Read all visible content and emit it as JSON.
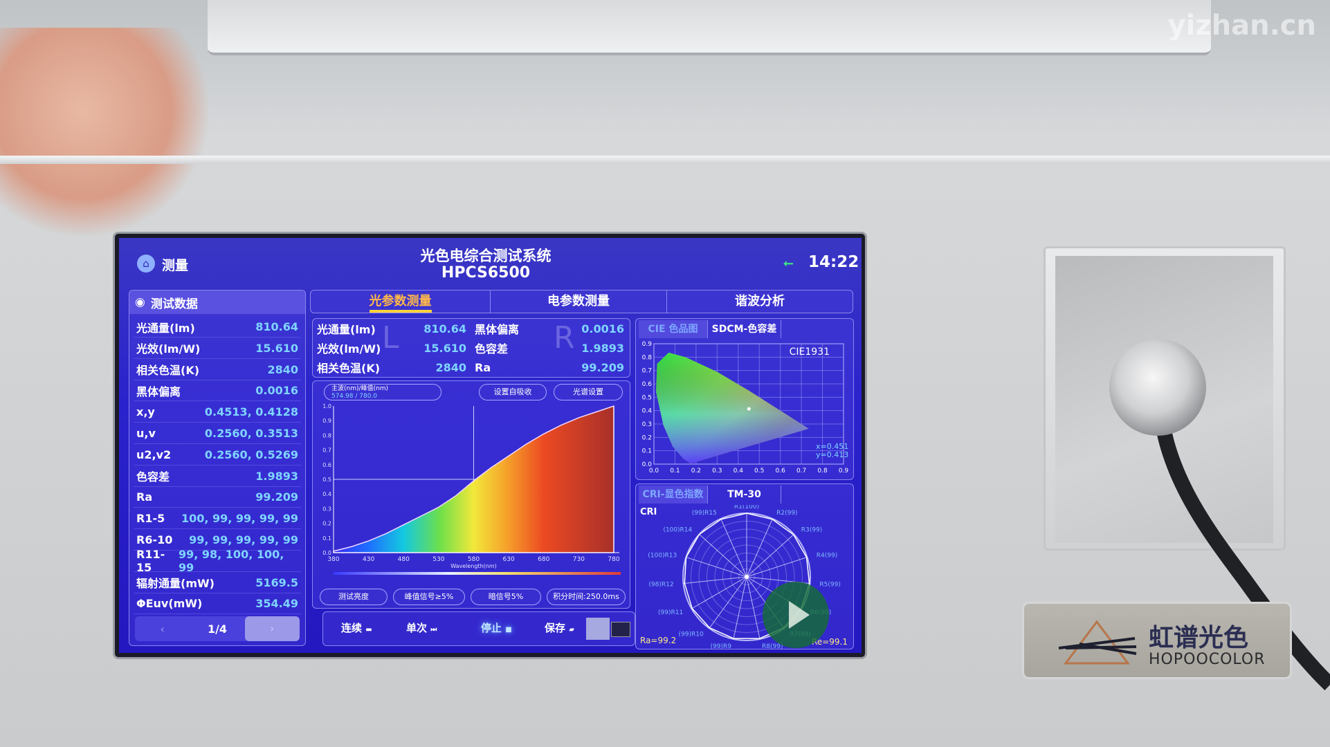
{
  "watermark": "yizhan.cn",
  "header": {
    "nav_label": "测量",
    "title": "光色电综合测试系统",
    "model": "HPCS6500",
    "time": "14:22"
  },
  "left_panel": {
    "title": "测试数据",
    "rows": [
      {
        "label": "光通量(lm)",
        "value": "810.64"
      },
      {
        "label": "光效(lm/W)",
        "value": "15.610"
      },
      {
        "label": "相关色温(K)",
        "value": "2840"
      },
      {
        "label": "黑体偏离",
        "value": "0.0016"
      },
      {
        "label": "x,y",
        "value": "0.4513, 0.4128"
      },
      {
        "label": "u,v",
        "value": "0.2560, 0.3513"
      },
      {
        "label": "u2,v2",
        "value": "0.2560, 0.5269"
      },
      {
        "label": "色容差",
        "value": "1.9893"
      },
      {
        "label": "Ra",
        "value": "99.209"
      },
      {
        "label": "R1-5",
        "value": "100, 99, 99, 99, 99"
      },
      {
        "label": "R6-10",
        "value": "99, 99, 99, 99, 99"
      },
      {
        "label": "R11-15",
        "value": "99, 98, 100, 100, 99"
      },
      {
        "label": "辐射通量(mW)",
        "value": "5169.5"
      },
      {
        "label": "ΦEuv(mW)",
        "value": "354.49"
      }
    ],
    "page": "1/4",
    "prev": "‹",
    "next": "›"
  },
  "tabs": [
    {
      "label": "光参数测量",
      "active": true
    },
    {
      "label": "电参数测量"
    },
    {
      "label": "谐波分析"
    }
  ],
  "summary": {
    "left": [
      {
        "label": "光通量(lm)",
        "value": "810.64"
      },
      {
        "label": "光效(lm/W)",
        "value": "15.610"
      },
      {
        "label": "相关色温(K)",
        "value": "2840"
      }
    ],
    "right": [
      {
        "label": "黑体偏离",
        "value": "0.0016"
      },
      {
        "label": "色容差",
        "value": "1.9893"
      },
      {
        "label": "Ra",
        "value": "99.209"
      }
    ],
    "watermark_l": "L",
    "watermark_r": "R"
  },
  "spectrum": {
    "info_label": "主波(nm)/峰值(nm)",
    "info_value": "574.98 / 780.0",
    "btn_dark": "设置自吸收",
    "btn_settings": "光谱设置",
    "status": [
      "测试亮度",
      "峰值信号≥5%",
      "暗信号5%",
      "积分时间:250.0ms"
    ],
    "xlabel": "Wavelength(nm)"
  },
  "toolbar": {
    "continuous": "连续",
    "single": "单次",
    "stop": "停止",
    "save": "保存"
  },
  "cie": {
    "tabs": [
      "CIE 色品图",
      "SDCM-色容差"
    ],
    "label": "CIE1931",
    "x_label": "x=0.451",
    "y_label": "y=0.413"
  },
  "cri": {
    "tabs": [
      "CRI-显色指数",
      "TM-30"
    ],
    "label": "CRI",
    "ra_left": "Ra=99.2",
    "ra_right": "Re=99.1"
  },
  "logo": {
    "cn": "虹谱光色",
    "en": "HOPOOCOLOR"
  },
  "chart_data": [
    {
      "type": "area",
      "title": "",
      "xlabel": "Wavelength(nm)",
      "ylabel": "",
      "xlim": [
        380,
        780
      ],
      "ylim": [
        0,
        1.0
      ],
      "x_ticks": [
        380,
        430,
        480,
        530,
        580,
        630,
        680,
        730,
        780
      ],
      "y_ticks": [
        0,
        0.1,
        0.2,
        0.3,
        0.4,
        0.5,
        0.6,
        0.7,
        0.8,
        0.9,
        1.0
      ],
      "x": [
        380,
        405,
        430,
        455,
        480,
        505,
        530,
        555,
        580,
        605,
        630,
        655,
        680,
        705,
        730,
        755,
        780
      ],
      "values": [
        0.01,
        0.04,
        0.08,
        0.13,
        0.19,
        0.25,
        0.31,
        0.39,
        0.49,
        0.58,
        0.66,
        0.74,
        0.81,
        0.87,
        0.92,
        0.96,
        1.0
      ],
      "grid": true
    },
    {
      "type": "scatter",
      "title": "CIE1931",
      "xlim": [
        0,
        0.9
      ],
      "ylim": [
        0,
        0.9
      ],
      "x_ticks": [
        0,
        0.1,
        0.2,
        0.3,
        0.4,
        0.5,
        0.6,
        0.7,
        0.8,
        0.9
      ],
      "y_ticks": [
        0,
        0.1,
        0.2,
        0.3,
        0.4,
        0.5,
        0.6,
        0.7,
        0.8,
        0.9
      ],
      "points": [
        {
          "x": 0.451,
          "y": 0.413
        }
      ],
      "grid": true
    },
    {
      "type": "radar",
      "title": "CRI",
      "categories": [
        "R1",
        "R2",
        "R3",
        "R4",
        "R5",
        "R6",
        "R7",
        "R8",
        "R9",
        "R10",
        "R11",
        "R12",
        "R13",
        "R14",
        "R15"
      ],
      "values": [
        100,
        99,
        99,
        99,
        99,
        99,
        99,
        99,
        99,
        99,
        99,
        98,
        100,
        100,
        99
      ],
      "range": [
        0,
        100
      ]
    }
  ],
  "colors": {
    "screen_bg": "#2a22cc",
    "value_text": "#7fd4ff",
    "active_tab": "#ffb84a"
  }
}
